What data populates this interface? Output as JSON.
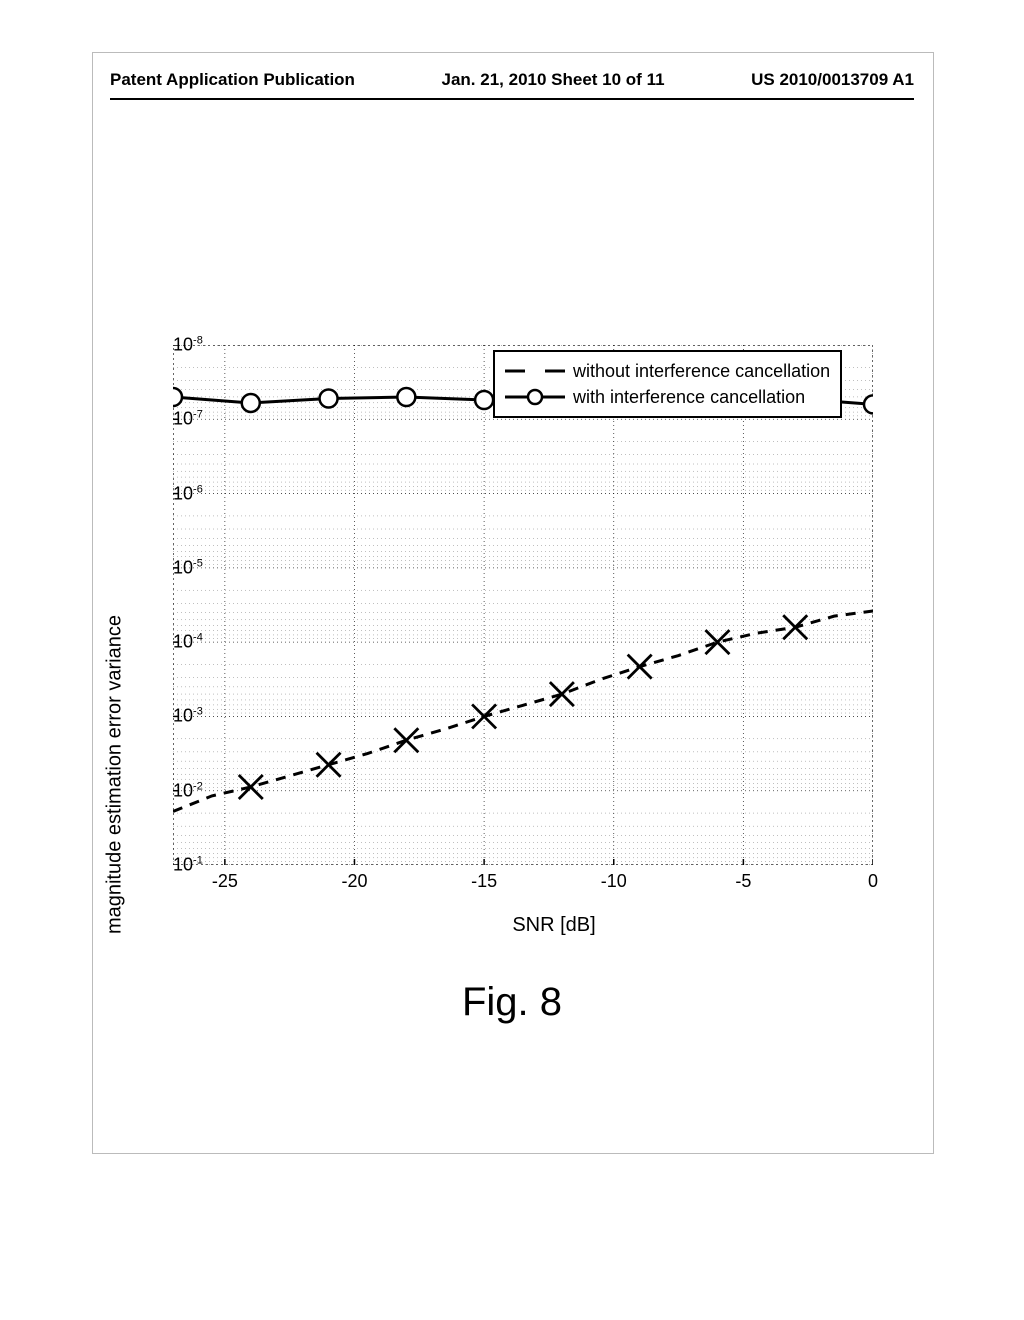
{
  "header": {
    "left": "Patent Application Publication",
    "center": "Jan. 21, 2010  Sheet 10 of 11",
    "right": "US 2010/0013709 A1"
  },
  "chart": {
    "type": "line-log",
    "x_label": "SNR [dB]",
    "y_label": "magnitude estimation error variance",
    "xlim": [
      -27,
      0
    ],
    "ylim_exp": [
      -8,
      -1
    ],
    "x_ticks": [
      -25,
      -20,
      -15,
      -10,
      -5,
      0
    ],
    "y_tick_exps": [
      -1,
      -2,
      -3,
      -4,
      -5,
      -6,
      -7,
      -8
    ],
    "background_color": "#ffffff",
    "axis_color": "#000000",
    "grid_color": "#000000",
    "series": [
      {
        "name": "without interference cancellation",
        "color": "#000000",
        "line_width": 3,
        "dash": "10,8",
        "marker": "x",
        "marker_size": 12,
        "data": [
          [
            -27,
            -1.72
          ],
          [
            -25.5,
            -1.93
          ],
          [
            -24,
            -2.05
          ],
          [
            -22.5,
            -2.2
          ],
          [
            -21,
            -2.35
          ],
          [
            -19.5,
            -2.5
          ],
          [
            -18,
            -2.68
          ],
          [
            -16.5,
            -2.83
          ],
          [
            -15,
            -3.0
          ],
          [
            -13.5,
            -3.15
          ],
          [
            -12,
            -3.3
          ],
          [
            -10.5,
            -3.5
          ],
          [
            -9,
            -3.67
          ],
          [
            -7.5,
            -3.82
          ],
          [
            -6,
            -4.0
          ],
          [
            -4.5,
            -4.12
          ],
          [
            -3,
            -4.2
          ],
          [
            -1.5,
            -4.35
          ],
          [
            0,
            -4.42
          ]
        ],
        "marker_data": [
          [
            -24,
            -2.05
          ],
          [
            -21,
            -2.35
          ],
          [
            -18,
            -2.68
          ],
          [
            -15,
            -3.0
          ],
          [
            -12,
            -3.3
          ],
          [
            -9,
            -3.67
          ],
          [
            -6,
            -4.0
          ],
          [
            -3,
            -4.2
          ]
        ]
      },
      {
        "name": "with interference cancellation",
        "color": "#000000",
        "line_width": 3,
        "dash": "",
        "marker": "o",
        "marker_size": 9,
        "data": [
          [
            -27,
            -7.3
          ],
          [
            -24,
            -7.22
          ],
          [
            -21,
            -7.28
          ],
          [
            -18,
            -7.3
          ],
          [
            -15,
            -7.26
          ],
          [
            -12,
            -7.3
          ],
          [
            -9,
            -7.28
          ],
          [
            -6,
            -7.25
          ],
          [
            -3,
            -7.28
          ],
          [
            0,
            -7.2
          ]
        ],
        "marker_data": [
          [
            -27,
            -7.3
          ],
          [
            -24,
            -7.22
          ],
          [
            -21,
            -7.28
          ],
          [
            -18,
            -7.3
          ],
          [
            -15,
            -7.26
          ],
          [
            -12,
            -7.3
          ],
          [
            -9,
            -7.28
          ],
          [
            -6,
            -7.25
          ],
          [
            -3,
            -7.28
          ],
          [
            0,
            -7.2
          ]
        ]
      }
    ],
    "legend": {
      "items": [
        {
          "label": "without interference cancellation"
        },
        {
          "label": "with interference cancellation"
        }
      ]
    }
  },
  "caption": "Fig. 8"
}
